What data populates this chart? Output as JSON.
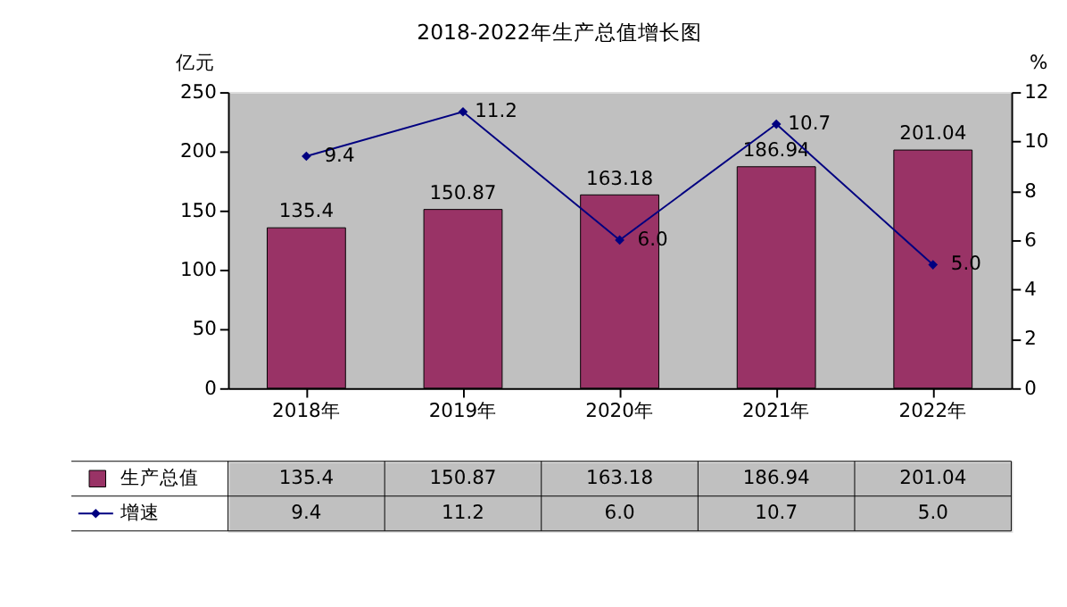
{
  "chart_data": {
    "type": "bar",
    "title": "2018-2022年生产总值增长图",
    "ylabel": "亿元",
    "y2label": "%",
    "categories": [
      "2018年",
      "2019年",
      "2020年",
      "2021年",
      "2022年"
    ],
    "series": [
      {
        "name": "生产总值",
        "color": "#993366",
        "values": [
          135.4,
          150.87,
          163.18,
          186.94,
          201.04
        ],
        "value_labels": [
          "135.4",
          "150.87",
          "163.18",
          "186.94",
          "201.04"
        ]
      },
      {
        "name": "增速",
        "type": "line",
        "axis": "y2",
        "color": "#000080",
        "marker": "diamond",
        "values": [
          9.4,
          11.2,
          6.0,
          10.7,
          5.0
        ],
        "value_labels": [
          "9.4",
          "11.2",
          "6.0",
          "10.7",
          "5.0"
        ]
      }
    ],
    "ylim": [
      0,
      250
    ],
    "yticks": [
      0,
      50,
      100,
      150,
      200,
      250
    ],
    "y2lim": [
      0,
      12
    ],
    "y2ticks": [
      0,
      2,
      4,
      6,
      8,
      10,
      12
    ],
    "grid": false,
    "legend": "bottom"
  }
}
